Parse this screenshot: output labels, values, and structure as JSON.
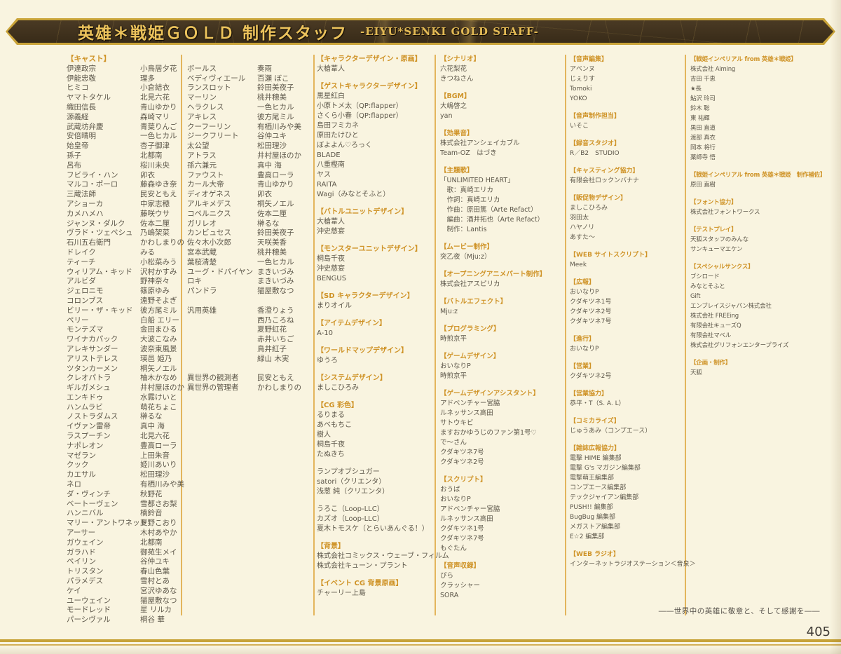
{
  "banner": {
    "title_jp": "英雄＊戦姫ＧＯＬＤ 制作スタッフ",
    "title_en": "-EIYU*SENKI GOLD STAFF-"
  },
  "cast": {
    "heading": "【キャスト】",
    "block1": [
      [
        "伊達政宗",
        "小鳥居夕花"
      ],
      [
        "伊能忠敬",
        "理多"
      ],
      [
        "ヒミコ",
        "小倉結衣"
      ],
      [
        "ヤマトタケル",
        "北見六花"
      ],
      [
        "織田信長",
        "青山ゆかり"
      ],
      [
        "源義経",
        "森崎マリ"
      ],
      [
        "武蔵坊弁慶",
        "青葉りんご"
      ],
      [
        "安倍晴明",
        "一色ヒカル"
      ],
      [
        "始皇帝",
        "杏子御津"
      ],
      [
        "孫子",
        "北都南"
      ],
      [
        "呂布",
        "桜川未央"
      ],
      [
        "フビライ・ハン",
        "卯衣"
      ],
      [
        "マルコ・ポーロ",
        "藤森ゆき奈"
      ],
      [
        "三蔵法師",
        "民安ともえ"
      ],
      [
        "アショーカ",
        "中家志穂"
      ],
      [
        "カメハメハ",
        "藤咲ウサ"
      ],
      [
        "ジャンヌ・ダルク",
        "佐本二厘"
      ],
      [
        "ヴラド・ツェペシュ",
        "乃嶋架菜"
      ],
      [
        "石川五右衛門",
        "かわしまりの"
      ],
      [
        "ドレイク",
        "みる"
      ],
      [
        "ティーチ",
        "小松菜みう"
      ],
      [
        "ウィリアム・キッド",
        "沢村かすみ"
      ],
      [
        "アルビダ",
        "野神奈々"
      ],
      [
        "ジェロニモ",
        "篠原ゆみ"
      ],
      [
        "コロンブス",
        "遠野そよぎ"
      ],
      [
        "ビリー・ザ・キッド",
        "彼方尾ミル"
      ],
      [
        "ペリー",
        "白船 エリー"
      ],
      [
        "モンテズマ",
        "金田まひる"
      ],
      [
        "ワイナカパック",
        "大波こなみ"
      ],
      [
        "アレキサンダー",
        "波奈束風景"
      ],
      [
        "アリストテレス",
        "瑛邑 姫乃"
      ],
      [
        "ツタンカーメン",
        "桐矢ノエル"
      ],
      [
        "クレオパトラ",
        "柚木かなめ"
      ],
      [
        "ギルガメシュ",
        "井村屋ほのか"
      ],
      [
        "エンキドゥ",
        "水霧けいと"
      ],
      [
        "ハンムラビ",
        "萌花ちょこ"
      ],
      [
        "ノストラダムス",
        "榊るな"
      ],
      [
        "イヴァン雷帝",
        "真中 海"
      ],
      [
        "ラスプーチン",
        "北見六花"
      ],
      [
        "ナポレオン",
        "豊高ローラ"
      ],
      [
        "マゼラン",
        "上田朱音"
      ],
      [
        "クック",
        "姫川あいり"
      ],
      [
        "カエサル",
        "松田理沙"
      ],
      [
        "ネロ",
        "有栖川みや美"
      ],
      [
        "ダ・ヴィンチ",
        "秋野花"
      ],
      [
        "ベートーヴェン",
        "雪都さお梨"
      ],
      [
        "ハンニバル",
        "楠鈴音"
      ],
      [
        "マリー・アントワネット",
        "夏野こおり"
      ],
      [
        "アーサー",
        "木村あやか"
      ],
      [
        "ガウェイン",
        "北都南"
      ],
      [
        "ガラハド",
        "御苑生メイ"
      ],
      [
        "ペイリン",
        "谷仲ユキ"
      ],
      [
        "トリスタン",
        "春山色葉"
      ],
      [
        "パラメデス",
        "雪村とあ"
      ],
      [
        "ケイ",
        "宮沢ゆあな"
      ],
      [
        "ユーウェイン",
        "猫屋敷なつ"
      ],
      [
        "モードレッド",
        "星 リルカ"
      ],
      [
        "パーシヴァル",
        "桐谷 華"
      ]
    ],
    "block2": [
      [
        "ボールス",
        "奏雨"
      ],
      [
        "ベディヴィエール",
        "百瀬 ぼこ"
      ],
      [
        "ランスロット",
        "鈴田美夜子"
      ],
      [
        "マーリン",
        "桃井穂美"
      ],
      [
        "ヘラクレス",
        "一色ヒカル"
      ],
      [
        "アキレス",
        "彼方尾ミル"
      ],
      [
        "クーフーリン",
        "有栖川みや美"
      ],
      [
        "ジークフリート",
        "谷仲ユキ"
      ],
      [
        "太公望",
        "松田理沙"
      ],
      [
        "アトラス",
        "井村屋ほのか"
      ],
      [
        "孫六兼元",
        "真中 海"
      ],
      [
        "ファウスト",
        "豊高ローラ"
      ],
      [
        "カール大帝",
        "青山ゆかり"
      ],
      [
        "ディオゲネス",
        "卯衣"
      ],
      [
        "アルキメデス",
        "桐矢ノエル"
      ],
      [
        "コペルニクス",
        "佐本二厘"
      ],
      [
        "ガリレオ",
        "榊るな"
      ],
      [
        "カンビュセス",
        "鈴田美夜子"
      ],
      [
        "佐々木小次郎",
        "天咲美香"
      ],
      [
        "宮本武蔵",
        "桃井穂美"
      ],
      [
        "葉桜清楚",
        "一色ヒカル"
      ],
      [
        "ユーグ・ドパイヤン",
        "まきいづみ"
      ],
      [
        "ロキ",
        "まきいづみ"
      ],
      [
        "パンドラ",
        "猫屋敷なつ"
      ],
      [
        "",
        ""
      ],
      [
        "汎用英雄",
        "香澄りょう"
      ],
      [
        "",
        "西乃ころね"
      ],
      [
        "",
        "夏野虹花"
      ],
      [
        "",
        "赤井いちご"
      ],
      [
        "",
        "鳥井紅子"
      ],
      [
        "",
        "緑山 木実"
      ],
      [
        "",
        ""
      ],
      [
        "異世界の観測者",
        "民安ともえ"
      ],
      [
        "異世界の管理者",
        "かわしまりの"
      ]
    ]
  },
  "credit_columns": [
    {
      "id": "col3",
      "entries": [
        "#【キャラクターデザイン・原画】",
        "大槍葦人",
        "",
        "#【ゲストキャラクターデザイン】",
        "黒星紅白",
        "小原トメ太（QP:flapper）",
        "さくら小春（QP:flapper）",
        "島田フミカネ",
        "原田たけひと",
        "ぼよよん♡ろっく",
        "BLADE",
        "八重樫南",
        "ヤス",
        "RAITA",
        "Wagi（みなとそふと）",
        "",
        "#【バトルユニットデザイン】",
        "大槍葦人",
        "沖史慈宴",
        "",
        "#【モンスターユニットデザイン】",
        "桐島千夜",
        "沖史慈宴",
        "BENGUS",
        "",
        "#【SD キャラクターデザイン】",
        "まりオイル",
        "",
        "#【アイテムデザイン】",
        "A-10",
        "",
        "#【ワールドマップデザイン】",
        "ゆうろ",
        "",
        "#【システムデザイン】",
        "ましこひろみ",
        "",
        "#【CG 彩色】",
        "るりまる",
        "あべもちこ",
        "樹人",
        "桐島千夜",
        "たぬきち",
        "",
        "ランプオブシュガー",
        "satori（クリエンタ）",
        "浅葱 純（クリエンタ）",
        "",
        "うろこ（Loop-LLC）",
        "カズオ（Loop-LLC）",
        "夏木トモスケ（とらいあんぐる！）",
        "",
        "#【背景】",
        "株式会社コミックス・ウェーブ・フィルム",
        "株式会社キューン・プラント",
        "",
        "#【イベント CG 背景原画】",
        "チャーリー上島"
      ]
    },
    {
      "id": "col4",
      "entries": [
        "#【シナリオ】",
        "六花梨花",
        "きつねさん",
        "",
        "#【BGM】",
        "大嶋啓之",
        "yan",
        "",
        "#【効果音】",
        "株式会社アンシェイカブル",
        "Team-OZ　はづき",
        "",
        "#【主題歌】",
        "「UNLIMITED HEART」",
        "　歌：真崎エリカ",
        "　作詞：真崎エリカ",
        "　作曲：原田篤（Arte Refact）",
        "　編曲：酒井拓也（Arte Refact）",
        "　制作：Lantis",
        "",
        "#【ムービー制作】",
        "突乙夜（Mju:z）",
        "",
        "#【オープニングアニメパート制作】",
        "株式会社アスピリカ",
        "",
        "#【バトルエフェクト】",
        "Mju:z",
        "",
        "#【プログラミング】",
        "時煎京平",
        "",
        "#【ゲームデザイン】",
        "おいなりP",
        "時煎京平",
        "",
        "#【ゲームデザインアシスタント】",
        "アドベンチャー宮脇",
        "ルネッサンス高田",
        "サトウキビ",
        "ますおかゆうじのファン第1号♡",
        "で〜さん",
        "クダキツネ7号",
        "クダキツネ2号",
        "",
        "#【スクリプト】",
        "おうば",
        "おいなりP",
        "アドベンチャー宮脇",
        "ルネッサンス高田",
        "クダキツネ1号",
        "クダキツネ7号",
        "もぐたん",
        "",
        "#【音声収録】",
        "ぴら",
        "クラッシャー",
        "SORA"
      ]
    },
    {
      "id": "col5",
      "entries": [
        "#【音声編集】",
        "アベンヌ",
        "じぇりす",
        "Tomoki",
        "YOKO",
        "",
        "#【音声制作担当】",
        "いそこ",
        "",
        "#【録音スタジオ】",
        "R／B2　STUDIO",
        "",
        "#【キャスティング協力】",
        "有限会社ロックンバナナ",
        "",
        "#【販促物デザイン】",
        "ましこひろみ",
        "羽田太",
        "ハヤノリ",
        "あすた〜",
        "",
        "#【WEB サイトスクリプト】",
        "Meek",
        "",
        "#【広報】",
        "おいなりP",
        "クダキツネ1号",
        "クダキツネ2号",
        "クダキツネ7号",
        "",
        "#【進行】",
        "おいなりP",
        "",
        "#【営業】",
        "クダキツネ2号",
        "",
        "#【営業協力】",
        "恭平・T（S. A. L）",
        "",
        "#【コミカライズ】",
        "じゅうあみ（コンプエース）",
        "",
        "#【雑誌広報協力】",
        "電撃 HIME 編集部",
        "電撃 G's マガジン編集部",
        "電撃萌王編集部",
        "コンプエース編集部",
        "テックジャイアン編集部",
        "PUSH!! 編集部",
        "BugBug 編集部",
        "メガストア編集部",
        "E☆2 編集部",
        "",
        "#【WEB ラジオ】",
        "インターネットラジオステーション＜音泉＞"
      ]
    },
    {
      "id": "col6",
      "entries": [
        "#【戦姫インペリアル from 英雄＊戦姫】",
        "株式会社 Aiming",
        "吉田 千恵",
        "★長",
        "鮎沢 玲司",
        "鈴木 聡",
        "東 祐輝",
        "黒田 直道",
        "渡部 真衣",
        "岡本 将行",
        "薬師寺 悟",
        "",
        "#【戦姫インペリアル from 英雄＊戦姫　制作補佐】",
        "原田 直樹",
        "",
        "#【フォント協力】",
        "株式会社フォントワークス",
        "",
        "#【テストプレイ】",
        "天狐スタッフのみんな",
        "サンキューマエケン",
        "",
        "#【スペシャルサンクス】",
        "ブシロード",
        "みなとそふと",
        "Gift",
        "エンブレイスジャパン株式会社",
        "株式会社 FREEing",
        "有限会社キューズQ",
        "有限会社マベル",
        "株式会社グリフォンエンタープライズ",
        "",
        "#【企画・制作】",
        "天狐"
      ]
    }
  ],
  "motto": "――世界中の英雄に敬意と、そして感謝を――",
  "page_number": "405"
}
